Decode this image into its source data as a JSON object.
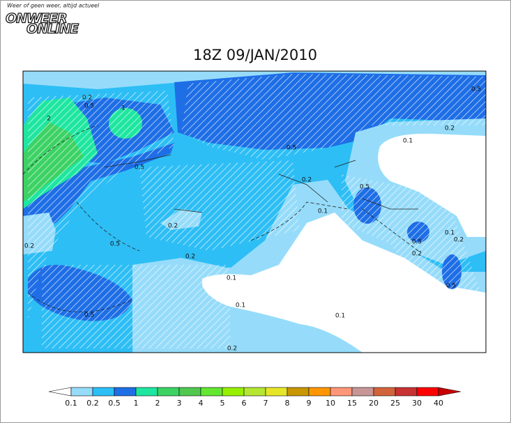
{
  "logo": {
    "tagline": "Weer of geen weer, altijd actueel",
    "line1": "ONWEER",
    "line2": "ONLINE"
  },
  "map": {
    "title": "18Z 09/JAN/2010",
    "contour_labels": [
      "0.2",
      "0.5",
      "1",
      "2",
      "0.5",
      "0.5",
      "0.2",
      "0.1",
      "0.2",
      "0.5",
      "0.1",
      "0.2",
      "0.1",
      "0.5",
      "0.2",
      "0.5",
      "0.2",
      "0.2",
      "0.2",
      "0.1",
      "0.5",
      "0.1",
      "0.5",
      "0.1",
      "0.2",
      "0.5"
    ]
  },
  "legend": {
    "labels": [
      0.1,
      0.2,
      0.5,
      1,
      2,
      3,
      4,
      5,
      6,
      7,
      8,
      9,
      10,
      15,
      20,
      25,
      30,
      40
    ],
    "colors": [
      "#ffffff",
      "#96dcfa",
      "#2dbef5",
      "#1e6ee6",
      "#1ee6a0",
      "#3cd264",
      "#50c850",
      "#64e632",
      "#96f000",
      "#b4e632",
      "#e6e628",
      "#c89600",
      "#ff9600",
      "#ff9678",
      "#c89696",
      "#d2643c",
      "#c83232",
      "#ff0000",
      "#c80000"
    ]
  }
}
